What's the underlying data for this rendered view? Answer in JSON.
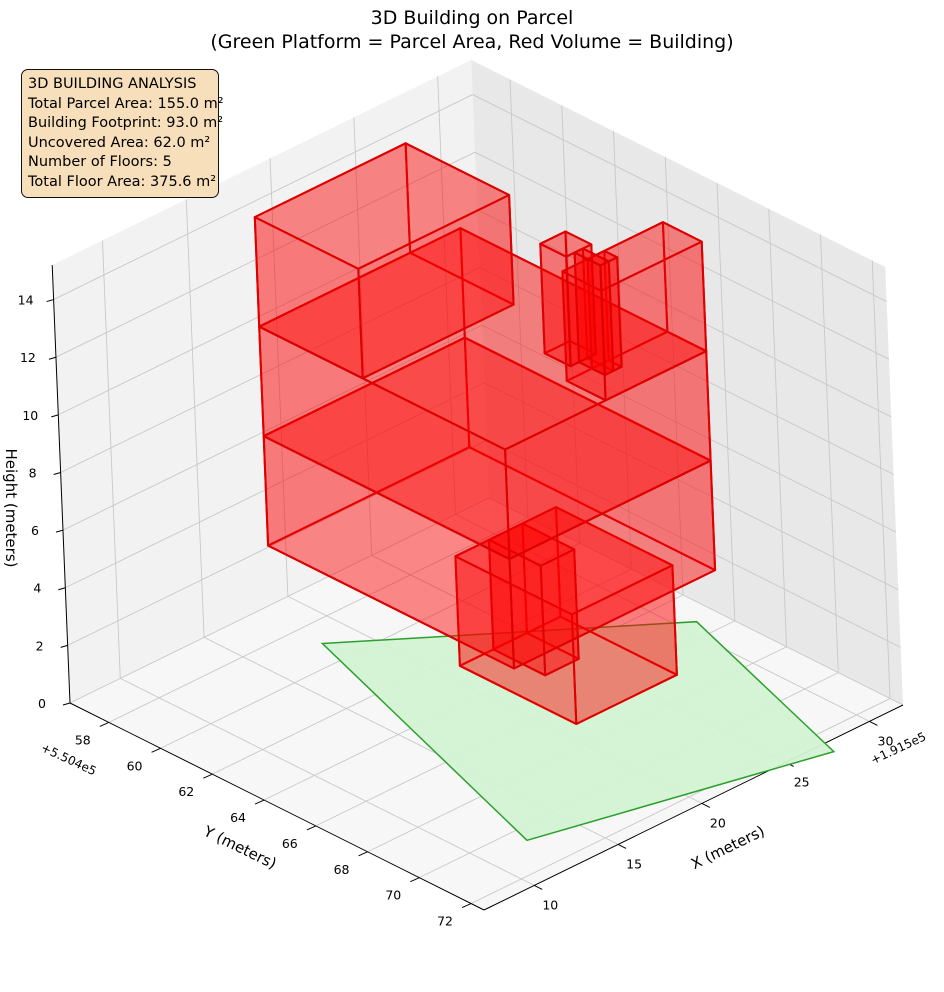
{
  "title": {
    "line1": "3D Building on Parcel",
    "line2": "(Green Platform = Parcel Area, Red Volume = Building)"
  },
  "info_box": {
    "heading": "3D BUILDING ANALYSIS",
    "lines": [
      "Total Parcel Area: 155.0 m²",
      "Building Footprint: 93.0 m²",
      "Uncovered Area: 62.0 m²",
      "Number of Floors: 5",
      "Total Floor Area: 375.6 m²"
    ]
  },
  "colors": {
    "parcel_fill": "#d3f2d3",
    "parcel_edge": "#2ca02c",
    "building_fill": "#ff0000",
    "building_edge": "#dd0000"
  },
  "chart_data": {
    "type": "3d-surface",
    "x_axis": {
      "label": "X (meters)",
      "offset": "+1.915e5",
      "ticks": [
        10,
        15,
        20,
        25,
        30
      ],
      "range": [
        7,
        32
      ]
    },
    "y_axis": {
      "label": "Y (meters)",
      "offset": "+5.504e5",
      "ticks": [
        58,
        60,
        62,
        64,
        66,
        68,
        70,
        72
      ],
      "range": [
        56.5,
        72.5
      ]
    },
    "z_axis": {
      "label": "Height (meters)",
      "ticks": [
        0,
        2,
        4,
        6,
        8,
        10,
        12,
        14
      ],
      "range": [
        0,
        15.2
      ]
    },
    "grid": true,
    "view": {
      "elev_deg": 25,
      "azim_deg": 45
    },
    "parcel": {
      "name": "Parcel Area",
      "polygon": [
        [
          12.5,
          70.6
        ],
        [
          18.2,
          59.0
        ],
        [
          30.8,
          65.3
        ],
        [
          27.1,
          73.0
        ]
      ]
    },
    "building": {
      "name": "Building",
      "floors": 5,
      "boxes": [
        {
          "x": [
            21.0,
            27.0
          ],
          "y": [
            62.5,
            67.0
          ],
          "z": [
            0,
            3.8
          ]
        },
        {
          "x": [
            23.0,
            25.0
          ],
          "y": [
            62.5,
            64.5
          ],
          "z": [
            0,
            3.8
          ]
        },
        {
          "x": [
            16.0,
            28.0
          ],
          "y": [
            58.5,
            68.0
          ],
          "z": [
            3.8,
            7.6
          ]
        },
        {
          "x": [
            16.0,
            28.0
          ],
          "y": [
            58.5,
            68.0
          ],
          "z": [
            7.6,
            11.4
          ]
        },
        {
          "x": [
            16.0,
            25.0
          ],
          "y": [
            58.5,
            62.5
          ],
          "z": [
            11.4,
            15.2
          ]
        },
        {
          "x": [
            22.0,
            28.0
          ],
          "y": [
            66.5,
            68.0
          ],
          "z": [
            11.4,
            15.2
          ]
        },
        {
          "x": [
            23.5,
            24.5
          ],
          "y": [
            66.5,
            67.0
          ],
          "z": [
            11.4,
            15.2
          ]
        },
        {
          "x": [
            23.0,
            24.5
          ],
          "y": [
            65.0,
            66.0
          ],
          "z": [
            11.4,
            15.2
          ]
        },
        {
          "x": [
            23.5,
            24.0
          ],
          "y": [
            66.0,
            67.0
          ],
          "z": [
            11.4,
            15.2
          ]
        }
      ]
    }
  }
}
